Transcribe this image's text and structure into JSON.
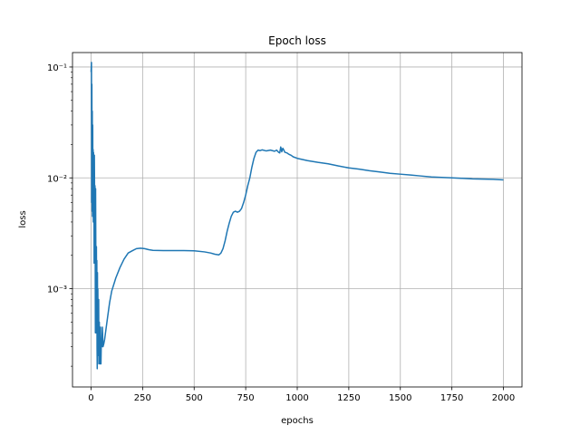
{
  "chart_data": {
    "type": "line",
    "title": "Epoch loss",
    "xlabel": "epochs",
    "ylabel": "loss",
    "xlim": [
      -90,
      2090
    ],
    "ylim": [
      0.00013,
      0.135
    ],
    "yscale": "log",
    "grid": true,
    "line_color": "#1f77b4",
    "x_ticks": [
      0,
      250,
      500,
      750,
      1000,
      1250,
      1500,
      1750,
      2000
    ],
    "x_tick_labels": [
      "0",
      "250",
      "500",
      "750",
      "1000",
      "1250",
      "1500",
      "1750",
      "2000"
    ],
    "y_ticks": [
      0.001,
      0.01,
      0.1
    ],
    "y_tick_labels": [
      "10⁻³",
      "10⁻²",
      "10⁻¹"
    ],
    "series": [
      {
        "x": [
          0,
          2,
          3,
          4,
          5,
          6,
          7,
          8,
          9,
          10,
          11,
          12,
          13,
          14,
          15,
          16,
          17,
          18,
          19,
          20,
          21,
          22,
          23,
          24,
          25,
          26,
          27,
          28,
          29,
          30,
          31,
          32,
          33,
          34,
          35,
          36,
          37,
          38,
          40,
          42,
          44,
          46,
          48,
          50,
          52,
          55,
          58,
          62,
          66,
          70,
          80,
          90,
          100,
          120,
          140,
          160,
          180,
          200,
          220,
          240,
          260,
          280,
          300,
          350,
          400,
          450,
          500,
          550,
          580,
          600,
          620,
          630,
          640,
          650,
          660,
          670,
          680,
          690,
          700,
          710,
          720,
          730,
          740,
          750,
          760,
          770,
          780,
          790,
          800,
          810,
          820,
          830,
          850,
          870,
          890,
          900,
          910,
          915,
          920,
          925,
          930,
          935,
          940,
          950,
          960,
          970,
          980,
          1000,
          1050,
          1100,
          1150,
          1200,
          1250,
          1300,
          1350,
          1400,
          1450,
          1500,
          1550,
          1600,
          1650,
          1700,
          1750,
          1800,
          1850,
          1900,
          1950,
          2000
        ],
        "y": [
          0.09,
          0.11,
          0.006,
          0.07,
          0.005,
          0.04,
          0.0045,
          0.03,
          0.0085,
          0.018,
          0.004,
          0.017,
          0.009,
          0.012,
          0.0017,
          0.016,
          0.008,
          0.004,
          0.0085,
          0.003,
          0.0004,
          0.008,
          0.0025,
          0.0015,
          0.0004,
          0.0024,
          0.0006,
          0.0018,
          0.0003,
          0.00019,
          0.0014,
          0.0004,
          0.001,
          0.00025,
          0.0006,
          0.0003,
          0.0008,
          0.00021,
          0.0005,
          0.00028,
          0.00021,
          0.00045,
          0.00021,
          0.00035,
          0.0003,
          0.00045,
          0.0003,
          0.00032,
          0.00035,
          0.0004,
          0.00055,
          0.00075,
          0.00095,
          0.00125,
          0.00155,
          0.00185,
          0.0021,
          0.0022,
          0.0023,
          0.00232,
          0.0023,
          0.00225,
          0.00222,
          0.00221,
          0.00221,
          0.00221,
          0.0022,
          0.00215,
          0.0021,
          0.00205,
          0.00202,
          0.0021,
          0.0023,
          0.0027,
          0.0033,
          0.0039,
          0.0045,
          0.0049,
          0.005,
          0.0049,
          0.005,
          0.0053,
          0.006,
          0.007,
          0.0085,
          0.01,
          0.0125,
          0.015,
          0.017,
          0.0178,
          0.0176,
          0.0179,
          0.0175,
          0.0178,
          0.0174,
          0.0178,
          0.017,
          0.0168,
          0.019,
          0.0172,
          0.0185,
          0.0178,
          0.017,
          0.0168,
          0.0163,
          0.016,
          0.0155,
          0.015,
          0.0143,
          0.0138,
          0.0134,
          0.0128,
          0.0123,
          0.012,
          0.0116,
          0.0113,
          0.011,
          0.0108,
          0.0106,
          0.0104,
          0.0102,
          0.0101,
          0.01,
          0.0099,
          0.0098,
          0.00975,
          0.0097,
          0.0096
        ]
      }
    ]
  }
}
